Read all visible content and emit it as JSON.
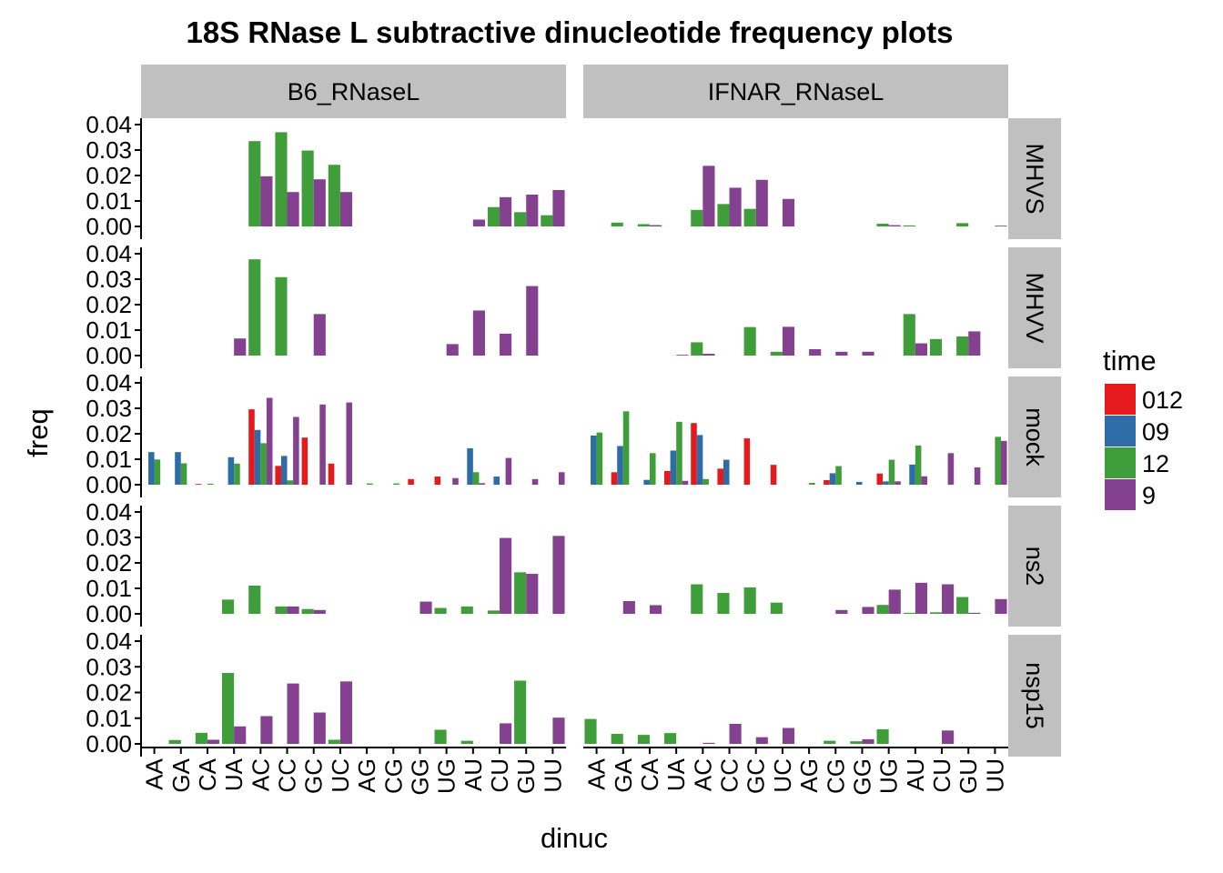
{
  "chart_data": {
    "type": "bar",
    "title": "18S RNase L subtractive dinucleotide frequency plots",
    "xlabel": "dinuc",
    "ylabel": "freq",
    "ylim": [
      0,
      0.04
    ],
    "yticks": [
      "0.00",
      "0.01",
      "0.02",
      "0.03",
      "0.04"
    ],
    "grid": false,
    "legend_position": "right",
    "categories": [
      "AA",
      "GA",
      "CA",
      "UA",
      "AC",
      "CC",
      "GC",
      "UC",
      "AG",
      "CG",
      "GG",
      "UG",
      "AU",
      "CU",
      "GU",
      "UU"
    ],
    "facet_columns": [
      "B6_RNaseL",
      "IFNAR_RNaseL"
    ],
    "facet_rows": [
      "MHVS",
      "MHVV",
      "mock",
      "ns2",
      "nsp15"
    ],
    "legend": {
      "title": "time",
      "entries": [
        {
          "label": "012",
          "color": "#E41A1C"
        },
        {
          "label": "09",
          "color": "#2E6CA8"
        },
        {
          "label": "12",
          "color": "#3F9E3A"
        },
        {
          "label": "9",
          "color": "#84418F"
        }
      ]
    },
    "panels": [
      {
        "col": "B6_RNaseL",
        "row": "MHVS",
        "series": [
          {
            "name": "12",
            "values": [
              0,
              0,
              0,
              0,
              0.0335,
              0.037,
              0.0298,
              0.0242,
              0,
              0,
              0,
              0,
              0,
              0.0076,
              0.0056,
              0.0044
            ]
          },
          {
            "name": "9",
            "values": [
              0,
              0,
              0,
              0,
              0.0197,
              0.0135,
              0.0185,
              0.0135,
              0,
              0,
              0,
              0,
              0.0027,
              0.0115,
              0.0125,
              0.0143
            ]
          }
        ]
      },
      {
        "col": "IFNAR_RNaseL",
        "row": "MHVS",
        "series": [
          {
            "name": "12",
            "values": [
              0,
              0.0015,
              0.0009,
              0,
              0.0065,
              0.0088,
              0.0069,
              0,
              0,
              0,
              0,
              0.0011,
              0.0004,
              0,
              0.0013,
              0
            ]
          },
          {
            "name": "9",
            "values": [
              0,
              0,
              0.0005,
              0,
              0.0238,
              0.0152,
              0.0183,
              0.0108,
              0,
              0,
              0,
              0.0005,
              0,
              0,
              0,
              0.0003
            ]
          }
        ]
      },
      {
        "col": "B6_RNaseL",
        "row": "MHVV",
        "series": [
          {
            "name": "12",
            "values": [
              0,
              0,
              0,
              0,
              0.0378,
              0.0308,
              0,
              0,
              0,
              0,
              0,
              0,
              0,
              0,
              0,
              0
            ]
          },
          {
            "name": "9",
            "values": [
              0,
              0,
              0,
              0.0067,
              0,
              0,
              0.0163,
              0,
              0,
              0,
              0,
              0.0045,
              0.0177,
              0.0086,
              0.0273,
              0
            ]
          }
        ]
      },
      {
        "col": "IFNAR_RNaseL",
        "row": "MHVV",
        "series": [
          {
            "name": "12",
            "values": [
              0,
              0,
              0,
              0,
              0.0052,
              0,
              0.0112,
              0.0015,
              0,
              0,
              0,
              0,
              0.0163,
              0.0065,
              0.0075,
              0
            ]
          },
          {
            "name": "9",
            "values": [
              0,
              0,
              0,
              0.0003,
              0.0007,
              0,
              0,
              0.0113,
              0.0025,
              0.0015,
              0.0015,
              0,
              0.0048,
              0,
              0.0095,
              0
            ]
          }
        ]
      },
      {
        "col": "B6_RNaseL",
        "row": "mock",
        "series": [
          {
            "name": "012",
            "values": [
              0,
              0,
              0.0003,
              0,
              0.0296,
              0.0074,
              0.0185,
              0.0083,
              0,
              0,
              0.0022,
              0.0032,
              0,
              0,
              0,
              0
            ]
          },
          {
            "name": "09",
            "values": [
              0.0128,
              0.0128,
              0,
              0.0108,
              0.0215,
              0.0113,
              0,
              0,
              0,
              0,
              0,
              0,
              0.0143,
              0.0032,
              0,
              0
            ]
          },
          {
            "name": "12",
            "values": [
              0.0099,
              0.0084,
              0.0004,
              0.0083,
              0.0163,
              0.0017,
              0,
              0,
              0.0005,
              0.0005,
              0,
              0,
              0.0049,
              0,
              0,
              0
            ]
          },
          {
            "name": "9",
            "values": [
              0,
              0,
              0,
              0,
              0.0341,
              0.0266,
              0.0315,
              0.0323,
              0,
              0,
              0,
              0.0026,
              0.0006,
              0.0105,
              0.0022,
              0.0049
            ]
          }
        ]
      },
      {
        "col": "IFNAR_RNaseL",
        "row": "mock",
        "series": [
          {
            "name": "012",
            "values": [
              0,
              0.0049,
              0,
              0.0054,
              0.0242,
              0.0063,
              0.0182,
              0.0078,
              0,
              0.0018,
              0,
              0.0044,
              0,
              0,
              0,
              0
            ]
          },
          {
            "name": "09",
            "values": [
              0.0193,
              0.0152,
              0.0019,
              0.0134,
              0.0195,
              0.0098,
              0,
              0,
              0,
              0.0045,
              0.0011,
              0.0013,
              0.0079,
              0,
              0,
              0
            ]
          },
          {
            "name": "12",
            "values": [
              0.0205,
              0.0288,
              0.0124,
              0.0247,
              0.0022,
              0,
              0,
              0,
              0.0007,
              0.0073,
              0,
              0.0098,
              0.0154,
              0,
              0,
              0.0188
            ]
          },
          {
            "name": "9",
            "values": [
              0,
              0,
              0,
              0.0015,
              0,
              0,
              0,
              0,
              0,
              0,
              0,
              0.0013,
              0.0033,
              0.0124,
              0.0068,
              0.0172
            ]
          }
        ]
      },
      {
        "col": "B6_RNaseL",
        "row": "ns2",
        "series": [
          {
            "name": "12",
            "values": [
              0,
              0,
              0,
              0.0056,
              0.0111,
              0.0029,
              0.0019,
              0,
              0,
              0,
              0,
              0.0023,
              0.0029,
              0.0013,
              0.0163,
              0
            ]
          },
          {
            "name": "9",
            "values": [
              0,
              0,
              0,
              0,
              0,
              0.0029,
              0.0015,
              0,
              0,
              0,
              0.0048,
              0,
              0,
              0.0298,
              0.0157,
              0.0306
            ]
          }
        ]
      },
      {
        "col": "IFNAR_RNaseL",
        "row": "ns2",
        "series": [
          {
            "name": "12",
            "values": [
              0,
              0,
              0,
              0,
              0.0116,
              0.0082,
              0.0104,
              0.0044,
              0,
              0,
              0,
              0.0035,
              0.0004,
              0.0006,
              0.0066,
              0
            ]
          },
          {
            "name": "9",
            "values": [
              0,
              0.005,
              0.0034,
              0,
              0,
              0,
              0,
              0,
              0,
              0.0015,
              0.0027,
              0.0095,
              0.0122,
              0.0116,
              0.0004,
              0.0058
            ]
          }
        ]
      },
      {
        "col": "B6_RNaseL",
        "row": "nsp15",
        "series": [
          {
            "name": "12",
            "values": [
              0,
              0.0015,
              0.0043,
              0.0276,
              0,
              0,
              0,
              0.0016,
              0,
              0,
              0,
              0.0055,
              0.0012,
              0,
              0.0246,
              0
            ]
          },
          {
            "name": "9",
            "values": [
              0,
              0,
              0.0016,
              0.0068,
              0.0108,
              0.0235,
              0.0122,
              0.0243,
              0,
              0,
              0,
              0,
              0,
              0.008,
              0,
              0.0102
            ]
          }
        ]
      },
      {
        "col": "IFNAR_RNaseL",
        "row": "nsp15",
        "series": [
          {
            "name": "12",
            "values": [
              0.0097,
              0.0039,
              0.0035,
              0.0042,
              0,
              0,
              0,
              0,
              0,
              0.0012,
              0.001,
              0.0057,
              0,
              0,
              0,
              0
            ]
          },
          {
            "name": "9",
            "values": [
              0,
              0,
              0,
              0,
              0.0004,
              0.0078,
              0.0026,
              0.0062,
              0,
              0,
              0.0018,
              0,
              0,
              0.0052,
              0,
              0
            ]
          }
        ]
      }
    ]
  }
}
